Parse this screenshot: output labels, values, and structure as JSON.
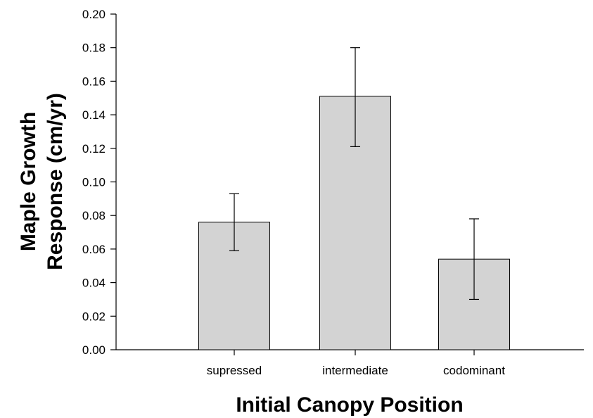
{
  "chart_data": {
    "type": "bar",
    "categories": [
      "supressed",
      "intermediate",
      "codominant"
    ],
    "values": [
      0.076,
      0.151,
      0.054
    ],
    "error_low": [
      0.059,
      0.121,
      0.03
    ],
    "error_high": [
      0.093,
      0.18,
      0.078
    ],
    "xlabel": "Initial Canopy Position",
    "ylabel_lines": [
      "Maple Growth",
      "Response (cm/yr)"
    ],
    "ylim": [
      0,
      0.2
    ],
    "yticks": [
      "0.00",
      "0.02",
      "0.04",
      "0.06",
      "0.08",
      "0.10",
      "0.12",
      "0.14",
      "0.16",
      "0.18",
      "0.20"
    ],
    "bar_color": "#d3d3d3",
    "grid": false
  }
}
